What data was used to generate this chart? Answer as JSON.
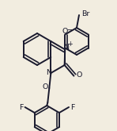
{
  "background_color": "#f2ede0",
  "line_color": "#1a1a2e",
  "line_width": 1.4,
  "figsize": [
    1.48,
    1.65
  ],
  "dpi": 100,
  "xlim": [
    0,
    148
  ],
  "ylim": [
    0,
    165
  ]
}
